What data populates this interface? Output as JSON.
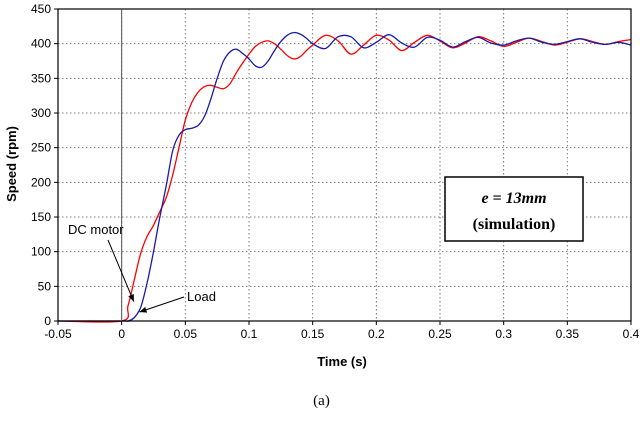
{
  "chart_data": {
    "type": "line",
    "xlabel": "Time (s)",
    "ylabel": "Speed (rpm)",
    "xlim": [
      -0.05,
      0.4
    ],
    "ylim": [
      0,
      450
    ],
    "x_ticks": [
      "-0.05",
      "0",
      "0.05",
      "0.1",
      "0.15",
      "0.2",
      "0.25",
      "0.3",
      "0.35",
      "0.4"
    ],
    "y_ticks": [
      "0",
      "50",
      "100",
      "150",
      "200",
      "250",
      "300",
      "350",
      "400",
      "450"
    ],
    "grid": true,
    "series": [
      {
        "name": "DC motor",
        "color": "#ff0000",
        "x": [
          -0.05,
          0,
          0.005,
          0.01,
          0.015,
          0.02,
          0.025,
          0.03,
          0.035,
          0.04,
          0.045,
          0.05,
          0.055,
          0.06,
          0.065,
          0.07,
          0.075,
          0.08,
          0.085,
          0.09,
          0.095,
          0.1,
          0.105,
          0.11,
          0.115,
          0.12,
          0.125,
          0.13,
          0.135,
          0.14,
          0.145,
          0.15,
          0.16,
          0.17,
          0.18,
          0.19,
          0.2,
          0.21,
          0.22,
          0.23,
          0.24,
          0.25,
          0.26,
          0.27,
          0.28,
          0.29,
          0.3,
          0.31,
          0.32,
          0.33,
          0.34,
          0.35,
          0.36,
          0.37,
          0.38,
          0.39,
          0.4
        ],
        "y": [
          0,
          0,
          22,
          60,
          98,
          122,
          138,
          158,
          178,
          210,
          250,
          290,
          315,
          330,
          338,
          340,
          337,
          335,
          342,
          358,
          372,
          385,
          396,
          402,
          404,
          400,
          392,
          383,
          378,
          381,
          390,
          398,
          412,
          404,
          385,
          398,
          412,
          405,
          390,
          402,
          412,
          404,
          394,
          401,
          410,
          404,
          396,
          402,
          408,
          403,
          398,
          402,
          407,
          403,
          399,
          403,
          406
        ]
      },
      {
        "name": "Load",
        "color": "#1a1aa8",
        "x": [
          -0.05,
          0,
          0.005,
          0.01,
          0.015,
          0.02,
          0.025,
          0.03,
          0.035,
          0.04,
          0.045,
          0.05,
          0.055,
          0.06,
          0.065,
          0.07,
          0.075,
          0.08,
          0.085,
          0.09,
          0.095,
          0.1,
          0.105,
          0.11,
          0.115,
          0.12,
          0.125,
          0.13,
          0.135,
          0.14,
          0.145,
          0.15,
          0.16,
          0.17,
          0.18,
          0.19,
          0.2,
          0.21,
          0.22,
          0.23,
          0.24,
          0.25,
          0.26,
          0.27,
          0.28,
          0.29,
          0.3,
          0.31,
          0.32,
          0.33,
          0.34,
          0.35,
          0.36,
          0.37,
          0.38,
          0.39,
          0.4
        ],
        "y": [
          0,
          0,
          0,
          5,
          20,
          55,
          100,
          150,
          195,
          245,
          268,
          276,
          278,
          282,
          295,
          320,
          350,
          375,
          388,
          392,
          386,
          378,
          368,
          366,
          375,
          390,
          403,
          412,
          416,
          414,
          408,
          400,
          393,
          410,
          410,
          394,
          402,
          413,
          401,
          395,
          409,
          405,
          395,
          403,
          409,
          401,
          398,
          404,
          408,
          402,
          399,
          403,
          407,
          402,
          399,
          402,
          398
        ]
      }
    ],
    "annotations": {
      "dc_motor": "DC motor",
      "load": "Load",
      "box_line1": "e  = 13mm",
      "box_line2": "(simulation)"
    },
    "caption": "(a)"
  }
}
